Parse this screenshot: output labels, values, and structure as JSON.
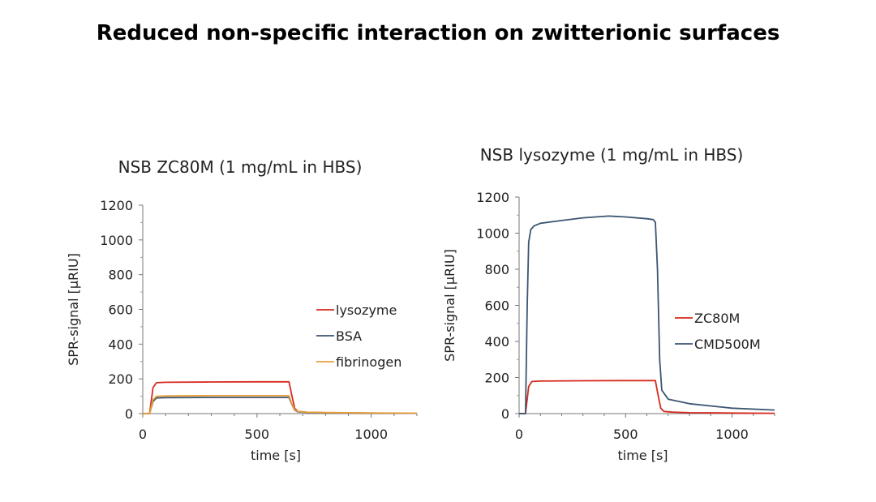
{
  "slide": {
    "title": "Reduced non-specific interaction on zwitterionic surfaces"
  },
  "chart_data": [
    {
      "type": "line",
      "title": "NSB ZC80M (1 mg/mL in HBS)",
      "xlabel": "time [s]",
      "ylabel": "SPR-signal [µRIU]",
      "xlim": [
        0,
        1200
      ],
      "ylim": [
        0,
        1200
      ],
      "xticks": [
        0,
        500,
        1000
      ],
      "yticks": [
        0,
        200,
        400,
        600,
        800,
        1000,
        1200
      ],
      "legend_position": "center-right",
      "grid": false,
      "series": [
        {
          "name": "lysozyme",
          "color": "#d62a1f",
          "x": [
            0,
            30,
            45,
            60,
            100,
            300,
            500,
            640,
            650,
            665,
            680,
            720,
            800,
            1000,
            1200
          ],
          "y": [
            0,
            0,
            150,
            178,
            180,
            182,
            183,
            183,
            120,
            30,
            12,
            8,
            5,
            3,
            2
          ]
        },
        {
          "name": "BSA",
          "color": "#3b5572",
          "x": [
            0,
            30,
            45,
            60,
            100,
            300,
            500,
            640,
            650,
            665,
            680,
            720,
            800,
            1000,
            1200
          ],
          "y": [
            0,
            0,
            70,
            90,
            92,
            93,
            93,
            93,
            60,
            20,
            10,
            7,
            5,
            3,
            2
          ]
        },
        {
          "name": "fibrinogen",
          "color": "#e8a13a",
          "x": [
            0,
            30,
            45,
            60,
            100,
            300,
            500,
            640,
            650,
            665,
            680,
            720,
            800,
            1000,
            1200
          ],
          "y": [
            0,
            0,
            80,
            100,
            102,
            103,
            103,
            103,
            65,
            22,
            12,
            8,
            6,
            4,
            3
          ]
        }
      ]
    },
    {
      "type": "line",
      "title": "NSB lysozyme (1 mg/mL in HBS)",
      "xlabel": "time [s]",
      "ylabel": "SPR-signal [µRIU]",
      "xlim": [
        0,
        1200
      ],
      "ylim": [
        0,
        1200
      ],
      "xticks": [
        0,
        500,
        1000
      ],
      "yticks": [
        0,
        200,
        400,
        600,
        800,
        1000,
        1200
      ],
      "legend_position": "center-right",
      "grid": false,
      "series": [
        {
          "name": "ZC80M",
          "color": "#d62a1f",
          "x": [
            0,
            30,
            45,
            60,
            100,
            300,
            500,
            640,
            650,
            665,
            680,
            720,
            800,
            1000,
            1200
          ],
          "y": [
            0,
            0,
            150,
            178,
            180,
            182,
            183,
            183,
            120,
            30,
            12,
            8,
            5,
            3,
            2
          ]
        },
        {
          "name": "CMD500M",
          "color": "#3b5572",
          "x": [
            0,
            30,
            38,
            45,
            55,
            70,
            100,
            200,
            300,
            420,
            500,
            600,
            630,
            640,
            650,
            660,
            670,
            700,
            800,
            1000,
            1200
          ],
          "y": [
            0,
            0,
            600,
            950,
            1020,
            1040,
            1055,
            1070,
            1085,
            1095,
            1090,
            1080,
            1075,
            1060,
            800,
            300,
            130,
            80,
            55,
            30,
            20
          ]
        }
      ]
    }
  ]
}
